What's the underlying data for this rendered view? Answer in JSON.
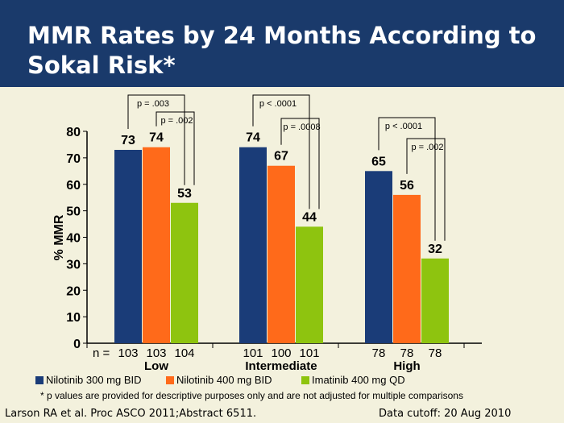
{
  "title": "MMR Rates by 24 Months According to Sokal Risk*",
  "colors": {
    "header": "#1a3a6b",
    "background": "#f3f1dd"
  },
  "chart_data": {
    "type": "bar",
    "ylabel": "% MMR",
    "ylim": [
      0,
      80
    ],
    "yticks": [
      0,
      10,
      20,
      30,
      40,
      50,
      60,
      70,
      80
    ],
    "n_prefix": "n =",
    "categories": [
      "Low",
      "Intermediate",
      "High"
    ],
    "series": [
      {
        "name": "Nilotinib 300 mg BID",
        "color": "#1a3c78",
        "values": [
          73,
          74,
          65
        ],
        "n": [
          "103",
          "101",
          "78"
        ]
      },
      {
        "name": "Nilotinib 400 mg BID",
        "color": "#ff6a1a",
        "values": [
          74,
          67,
          56
        ],
        "n": [
          "103",
          "100",
          "78"
        ]
      },
      {
        "name": "Imatinib 400 mg QD",
        "color": "#8ec40f",
        "values": [
          53,
          44,
          32
        ],
        "n": [
          "104",
          "101",
          "78"
        ]
      }
    ],
    "p_values": [
      {
        "category": "Low",
        "outer": "p = .003",
        "inner": "p = .002"
      },
      {
        "category": "Intermediate",
        "outer": "p < .0001",
        "inner": "p = .0008"
      },
      {
        "category": "High",
        "outer": "p < .0001",
        "inner": "p = .002"
      }
    ],
    "legend_position": "bottom"
  },
  "footnote": "* p values are provided for descriptive purposes only and are not adjusted for multiple comparisons",
  "citation": "Larson RA et al. Proc ASCO 2011;Abstract 6511.",
  "data_cutoff": "Data cutoff: 20 Aug 2010"
}
